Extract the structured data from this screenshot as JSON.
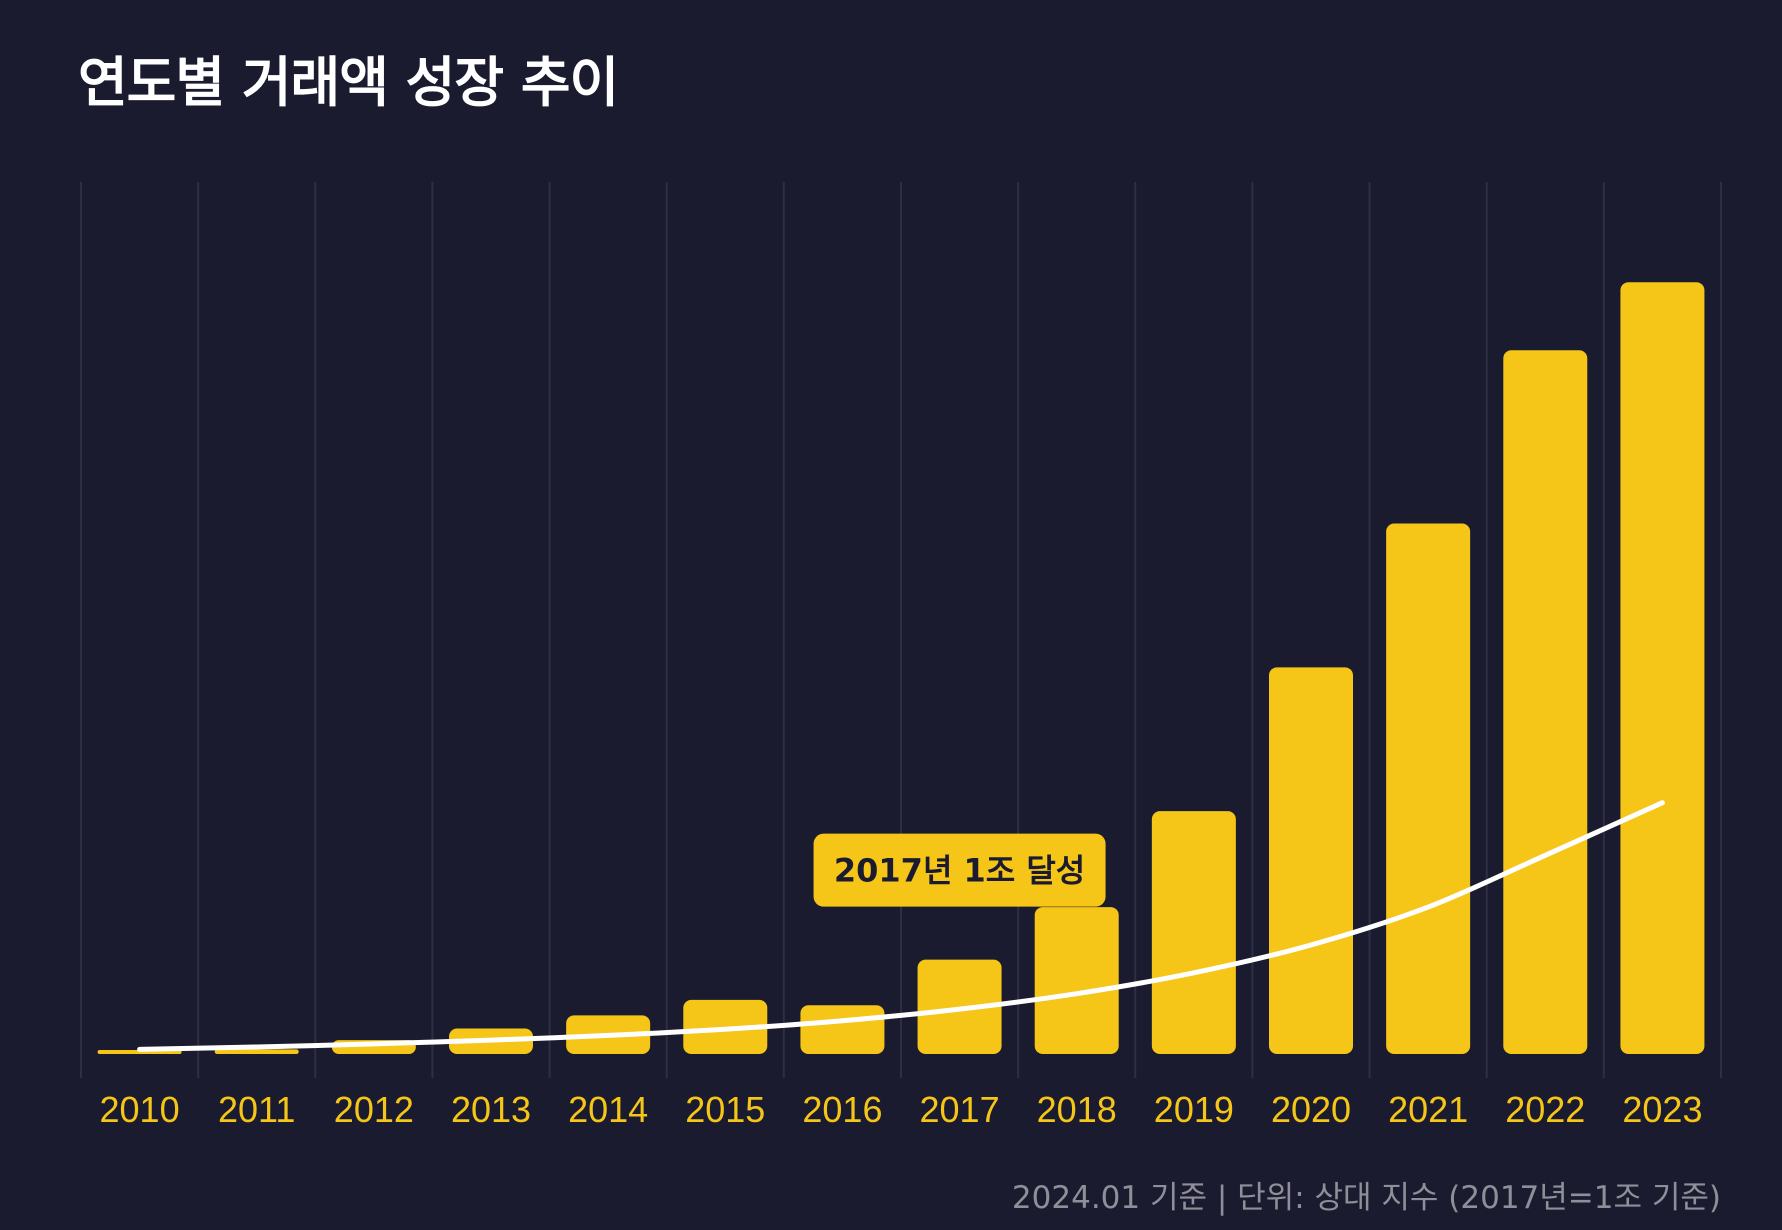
{
  "chart_data": {
    "type": "bar",
    "title": "연도별 거래액 성장 추이",
    "categories": [
      "2010",
      "2011",
      "2012",
      "2013",
      "2014",
      "2015",
      "2016",
      "2017",
      "2018",
      "2019",
      "2020",
      "2021",
      "2022",
      "2023"
    ],
    "series": [
      {
        "values": [
          0.05,
          0.06,
          0.18,
          0.33,
          0.5,
          0.7,
          0.63,
          1.22,
          1.9,
          3.14,
          5.0,
          6.86,
          9.1,
          9.98
        ]
      }
    ],
    "trend_line": {
      "values": [
        0.06,
        0.09,
        0.13,
        0.18,
        0.24,
        0.32,
        0.43,
        0.58,
        0.78,
        1.05,
        1.41,
        1.9,
        2.57,
        3.25
      ]
    },
    "ylim": [
      0,
      12
    ],
    "grid": "vertical",
    "annotation": {
      "text": "2017년 1조 달성",
      "x": "2017",
      "y": 1.22
    },
    "footnote": "2024.01 기준  |  단위: 상대 지수 (2017년=1조 기준)"
  },
  "colors": {
    "background": "#1b1b2f",
    "bar": "#f5c518",
    "trend": "#ffffff",
    "grid": "#2e2e45",
    "tick_label": "#f5c518",
    "annotation_bg": "#f5c518",
    "annotation_text": "#1b1b2f",
    "footnote": "#8f8f9a"
  }
}
